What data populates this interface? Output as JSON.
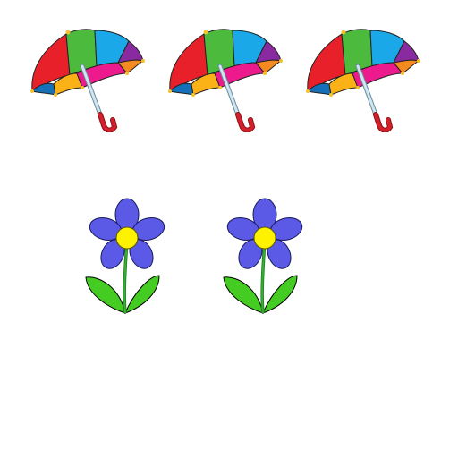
{
  "scene": {
    "background": "#ffffff",
    "umbrella_count": 3,
    "flower_count": 2
  },
  "umbrella": {
    "icon": "umbrella-icon",
    "colors": {
      "red": "#e8202a",
      "green": "#4cba3c",
      "blue": "#1aa8e8",
      "purple": "#8a2aa0",
      "pink": "#ec1a8c",
      "orange": "#fbb216",
      "dark_blue": "#1570b8",
      "shaft": "#b8d8e8",
      "handle": "#d4202a",
      "tip": "#f2c230"
    }
  },
  "flower": {
    "icon": "flower-icon",
    "colors": {
      "petal": "#5a5ae6",
      "center": "#fff200",
      "stem": "#33b033",
      "leaf": "#44cc22",
      "outline": "#000000"
    }
  }
}
